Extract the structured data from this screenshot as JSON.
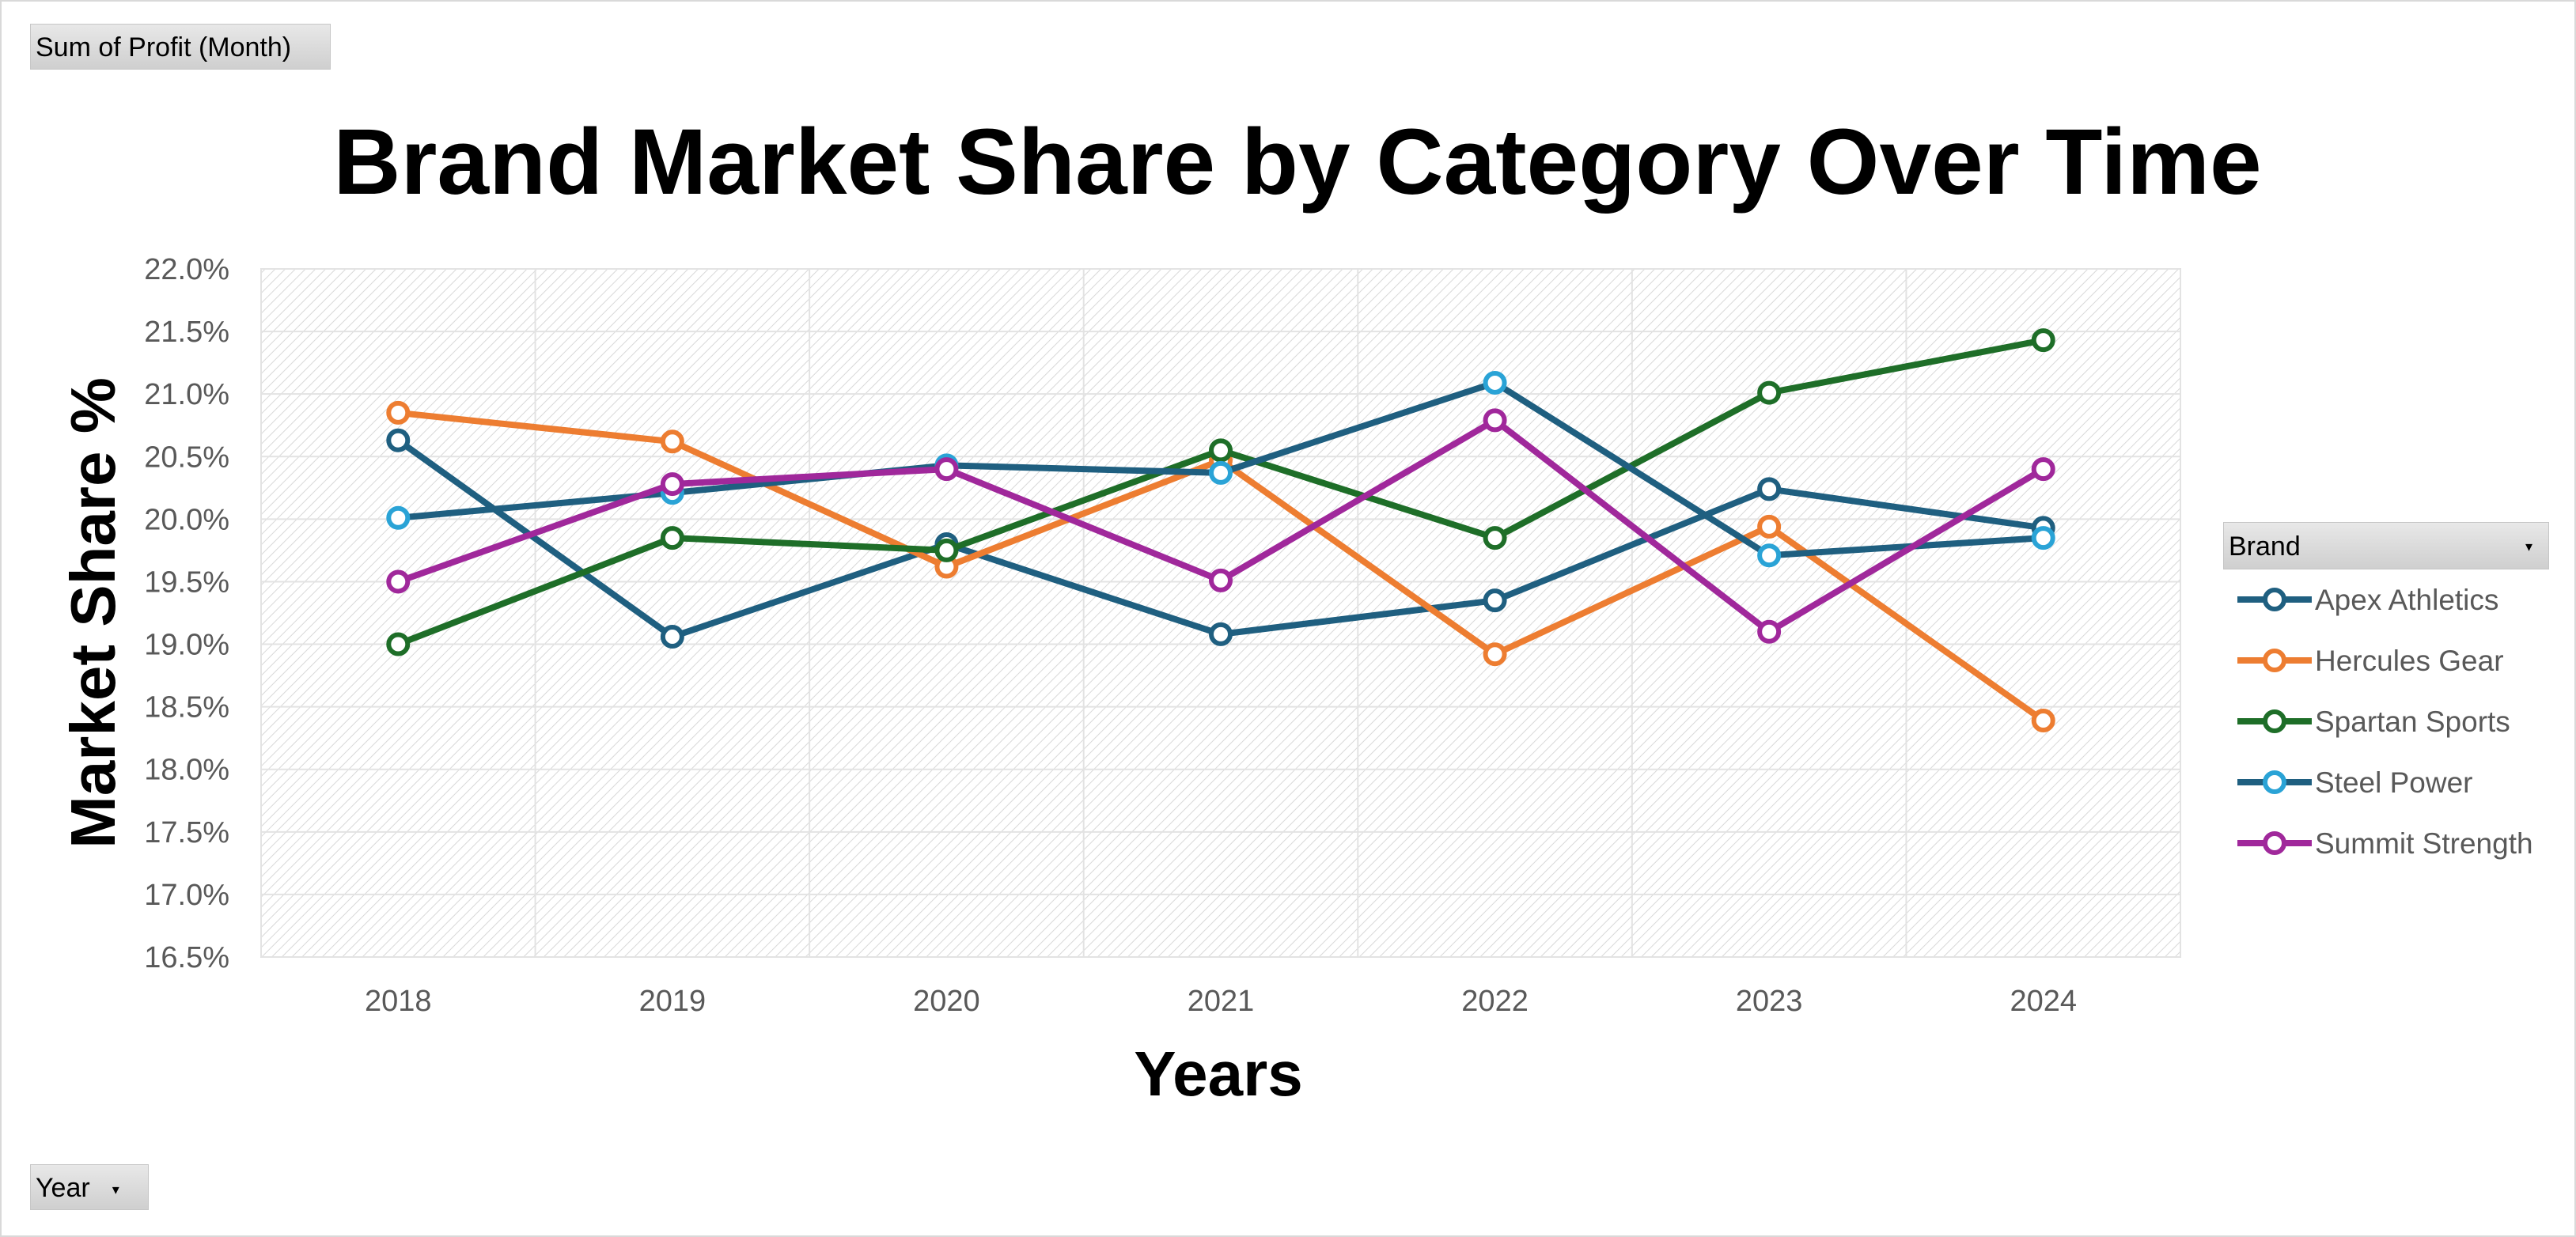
{
  "pivot": {
    "value_field": "Sum of Profit (Month)",
    "row_field": "Year",
    "legend_field": "Brand",
    "dropdown_glyph": "▾"
  },
  "chart_data": {
    "type": "line",
    "title": "Brand Market Share by Category Over Time",
    "xlabel": "Years",
    "ylabel": "Market Share %",
    "categories": [
      "2018",
      "2019",
      "2020",
      "2021",
      "2022",
      "2023",
      "2024"
    ],
    "ylim": [
      0.165,
      0.22
    ],
    "ytick_step": 0.005,
    "y_format": "percent_1dp",
    "grid": true,
    "plot_fill": "diagonal-hatch",
    "legend_position": "right",
    "series": [
      {
        "name": "Apex Athletics",
        "color": "#1f5f80",
        "values": [
          0.2063,
          0.1906,
          0.198,
          0.1908,
          0.1935,
          0.2024,
          0.1993
        ]
      },
      {
        "name": "Hercules Gear",
        "color": "#ed7d31",
        "values": [
          0.2085,
          0.2062,
          0.1962,
          0.2047,
          0.1892,
          0.1994,
          0.1839
        ]
      },
      {
        "name": "Spartan Sports",
        "color": "#1e6e28",
        "values": [
          0.19,
          0.1985,
          0.1975,
          0.2055,
          0.1985,
          0.2101,
          0.2143
        ]
      },
      {
        "name": "Steel Power",
        "color": "#1f5f80",
        "marker_edge": "#2aa3d6",
        "values": [
          0.2001,
          0.2021,
          0.2043,
          0.2037,
          0.2109,
          0.1971,
          0.1985
        ]
      },
      {
        "name": "Summit Strength",
        "color": "#a0289b",
        "values": [
          0.195,
          0.2028,
          0.204,
          0.1951,
          0.2079,
          0.191,
          0.204
        ]
      }
    ]
  }
}
